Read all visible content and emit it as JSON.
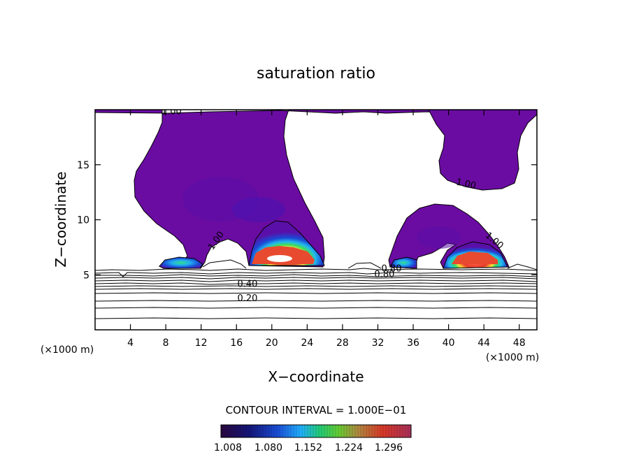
{
  "chart_data": {
    "type": "heatmap",
    "title": "saturation ratio",
    "xlabel": "X−coordinate",
    "ylabel": "Z−coordinate",
    "x_unit_left": "(×1000 m)",
    "x_unit_right": "(×1000 m)",
    "xlim": [
      0,
      50
    ],
    "ylim": [
      0,
      20
    ],
    "x_ticks": [
      4,
      8,
      12,
      16,
      20,
      24,
      28,
      32,
      36,
      40,
      44,
      48
    ],
    "y_ticks": [
      5,
      10,
      15
    ],
    "contour_interval_label": "CONTOUR INTERVAL = 1.000E−01",
    "colorbar": {
      "labels": [
        "1.008",
        "1.080",
        "1.152",
        "1.224",
        "1.296"
      ],
      "colors": [
        "#3a0a4a",
        "#1a1aa8",
        "#1f8fff",
        "#22dd66",
        "#c88a3a",
        "#e03020",
        "#b0305a"
      ]
    },
    "contour_labels": [
      {
        "text": "1.00",
        "x": 7.5,
        "y": 19.6,
        "angle": 0
      },
      {
        "text": "1.00",
        "x": 13.3,
        "y": 7.2,
        "angle": -55
      },
      {
        "text": "1.00",
        "x": 40.8,
        "y": 13.2,
        "angle": 12
      },
      {
        "text": "1.00",
        "x": 44.1,
        "y": 8.5,
        "angle": 40
      },
      {
        "text": "0.80",
        "x": 32.4,
        "y": 5.3,
        "angle": 0
      },
      {
        "text": "0.80",
        "x": 31.6,
        "y": 4.8,
        "angle": 0
      },
      {
        "text": "0.40",
        "x": 16.1,
        "y": 3.9,
        "angle": 0
      },
      {
        "text": "0.20",
        "x": 16.1,
        "y": 2.6,
        "angle": 0
      }
    ],
    "supersaturated_regions": [
      {
        "name": "left anvil",
        "x_range": [
          4.5,
          26.5
        ],
        "z_range": [
          5.8,
          20
        ]
      },
      {
        "name": "left core",
        "x_range": [
          17,
          26
        ],
        "z_range": [
          5.8,
          11
        ]
      },
      {
        "name": "right cell",
        "x_range": [
          33,
          47
        ],
        "z_range": [
          5.8,
          11.4
        ]
      },
      {
        "name": "right anvil",
        "x_range": [
          36.5,
          49.5
        ],
        "z_range": [
          12.8,
          20
        ]
      }
    ],
    "grid": false
  },
  "colors": {
    "anvil": "#6a0ca2",
    "background": "#ffffff",
    "contour": "#000000"
  }
}
